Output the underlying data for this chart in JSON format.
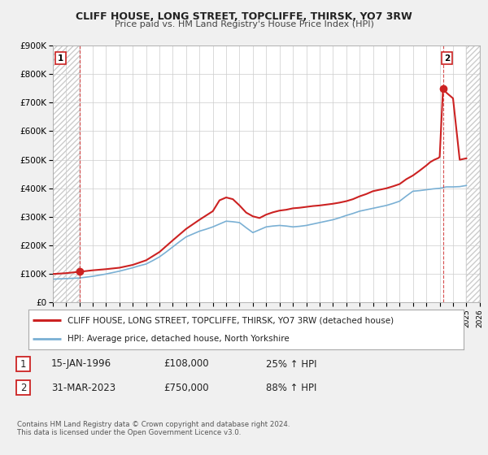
{
  "title": "CLIFF HOUSE, LONG STREET, TOPCLIFFE, THIRSK, YO7 3RW",
  "subtitle": "Price paid vs. HM Land Registry's House Price Index (HPI)",
  "background_color": "#f0f0f0",
  "plot_bg_color": "#ffffff",
  "grid_color": "#cccccc",
  "hpi_color": "#7ab0d4",
  "house_color": "#cc2222",
  "marker_color": "#cc2222",
  "marker1_x": 1996.04,
  "marker1_y": 108000,
  "marker2_x": 2023.25,
  "marker2_y": 750000,
  "xmin": 1994,
  "xmax": 2026,
  "ymin": 0,
  "ymax": 900000,
  "legend_house": "CLIFF HOUSE, LONG STREET, TOPCLIFFE, THIRSK, YO7 3RW (detached house)",
  "legend_hpi": "HPI: Average price, detached house, North Yorkshire",
  "annotation1_date": "15-JAN-1996",
  "annotation1_price": "£108,000",
  "annotation1_hpi": "25% ↑ HPI",
  "annotation2_date": "31-MAR-2023",
  "annotation2_price": "£750,000",
  "annotation2_hpi": "88% ↑ HPI",
  "footer": "Contains HM Land Registry data © Crown copyright and database right 2024.\nThis data is licensed under the Open Government Licence v3.0.",
  "xticks": [
    1994,
    1995,
    1996,
    1997,
    1998,
    1999,
    2000,
    2001,
    2002,
    2003,
    2004,
    2005,
    2006,
    2007,
    2008,
    2009,
    2010,
    2011,
    2012,
    2013,
    2014,
    2015,
    2016,
    2017,
    2018,
    2019,
    2020,
    2021,
    2022,
    2023,
    2024,
    2025,
    2026
  ],
  "yticks": [
    0,
    100000,
    200000,
    300000,
    400000,
    500000,
    600000,
    700000,
    800000,
    900000
  ],
  "ytick_labels": [
    "£0",
    "£100K",
    "£200K",
    "£300K",
    "£400K",
    "£500K",
    "£600K",
    "£700K",
    "£800K",
    "£900K"
  ]
}
